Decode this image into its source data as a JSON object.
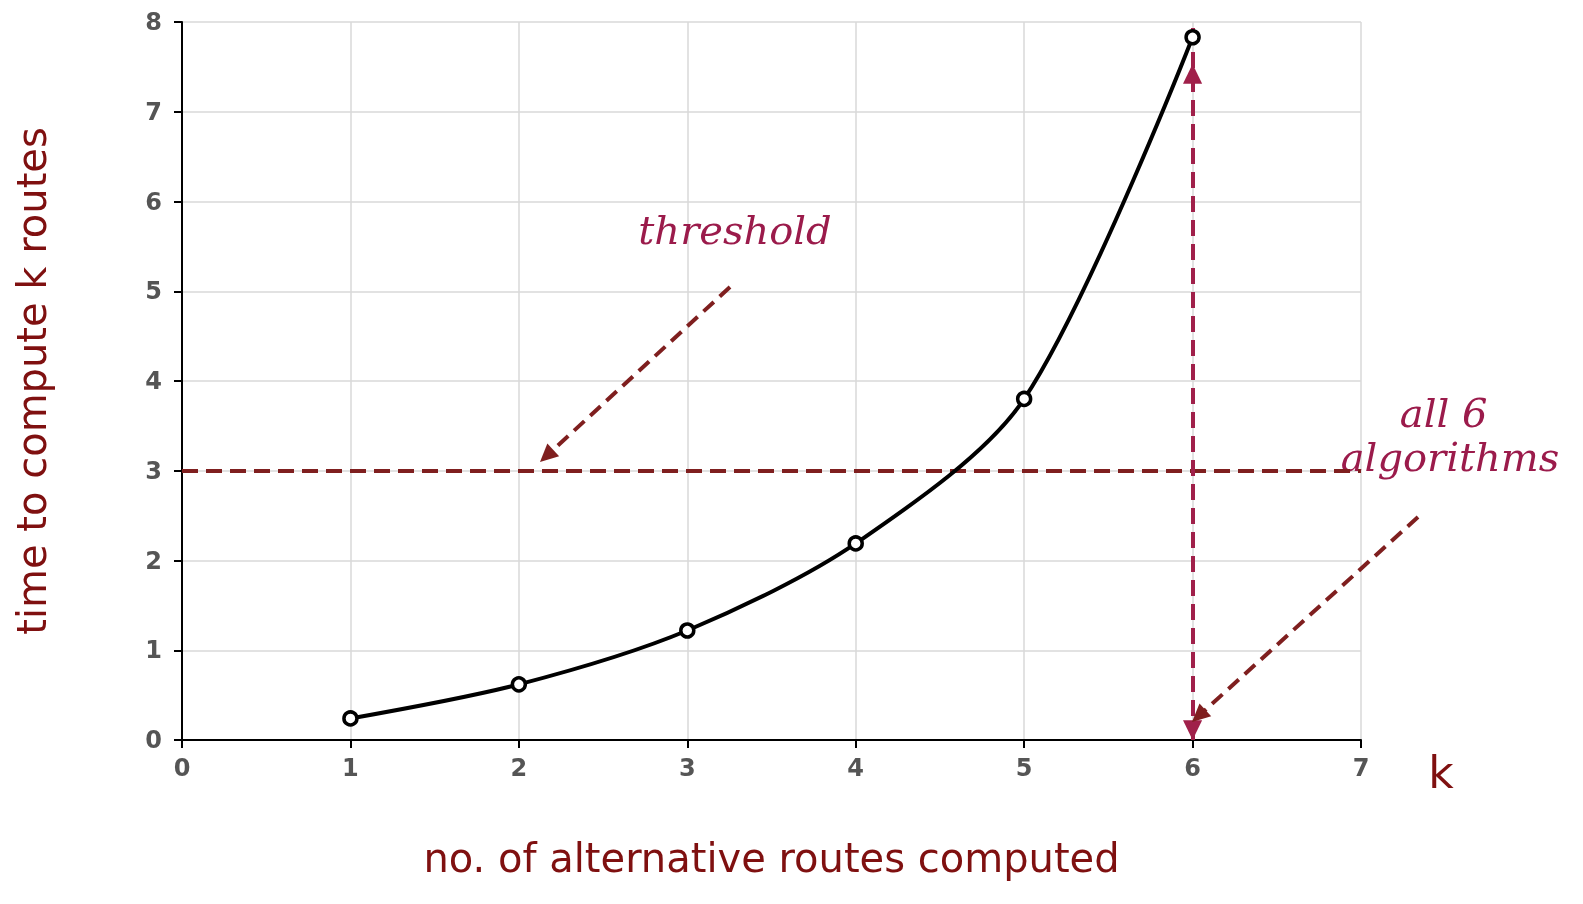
{
  "chart_data": {
    "type": "line",
    "xlabel": "no. of alternative routes computed",
    "ylabel": "time to compute k routes",
    "x": [
      1,
      2,
      3,
      4,
      5,
      6
    ],
    "series": [
      {
        "color": "#000000",
        "values": [
          0.24,
          0.62,
          1.22,
          2.19,
          3.8,
          7.83
        ]
      }
    ],
    "xlim": [
      0,
      7
    ],
    "xticks": [
      0,
      1,
      2,
      3,
      4,
      5,
      6,
      7
    ],
    "ylim": [
      0,
      8
    ],
    "yticks": [
      0,
      1,
      2,
      3,
      4,
      5,
      6,
      7,
      8
    ],
    "grid": true,
    "marker": "circle",
    "line_style": "solid",
    "ref_lines": [
      {
        "axis": "y",
        "value": 3,
        "color": "#7f1f1f",
        "line_style": "dashed"
      },
      {
        "axis": "x",
        "value": 6,
        "color": "#a0204a",
        "line_style": "dashed"
      }
    ],
    "annotations": [
      "threshold",
      "all 6 algorithms",
      "k"
    ]
  }
}
